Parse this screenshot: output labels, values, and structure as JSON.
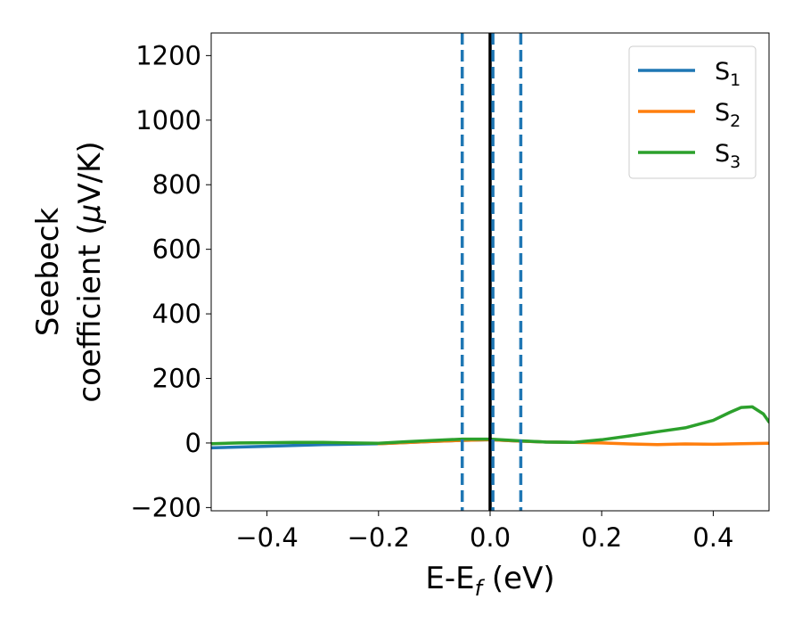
{
  "chart_data": {
    "type": "line",
    "xlabel": {
      "main": "E-E",
      "sub": "f",
      "suffix": " (eV)"
    },
    "ylabel": {
      "line1": "Seebeck",
      "line2_prefix": "coefficient  (",
      "mu": "μ",
      "line2_suffix": "V/K)"
    },
    "xlim": [
      -0.5,
      0.5
    ],
    "ylim": [
      -210,
      1270
    ],
    "xticks": [
      -0.4,
      -0.2,
      0.0,
      0.2,
      0.4
    ],
    "xtick_labels": [
      "−0.4",
      "−0.2",
      "0.0",
      "0.2",
      "0.4"
    ],
    "yticks": [
      -200,
      0,
      200,
      400,
      600,
      800,
      1000,
      1200
    ],
    "ytick_labels": [
      "−200",
      "0",
      "200",
      "400",
      "600",
      "800",
      "1000",
      "1200"
    ],
    "vlines": [
      {
        "x": -0.05,
        "style": "dashed",
        "color": "#1f77b4"
      },
      {
        "x": 0.0,
        "style": "solid",
        "color": "#000000"
      },
      {
        "x": 0.005,
        "style": "dashed",
        "color": "#1f77b4"
      },
      {
        "x": 0.055,
        "style": "dashed",
        "color": "#1f77b4"
      }
    ],
    "legend": {
      "position": "top-right"
    },
    "series": [
      {
        "name": "S",
        "sub": "1",
        "color": "#1f77b4",
        "x": [
          -0.5,
          -0.4,
          -0.3,
          -0.2,
          -0.1,
          -0.05,
          0.0,
          0.05,
          0.1,
          0.15
        ],
        "y": [
          -15,
          -10,
          -5,
          -2,
          5,
          8,
          10,
          6,
          3,
          2
        ]
      },
      {
        "name": "S",
        "sub": "2",
        "color": "#ff7f0e",
        "x": [
          -0.2,
          -0.1,
          -0.05,
          0.0,
          0.05,
          0.1,
          0.15,
          0.2,
          0.25,
          0.3,
          0.35,
          0.4,
          0.45,
          0.5
        ],
        "y": [
          -2,
          5,
          8,
          10,
          6,
          3,
          2,
          0,
          -3,
          -5,
          -3,
          -4,
          -2,
          -1
        ]
      },
      {
        "name": "S",
        "sub": "3",
        "color": "#2ca02c",
        "x": [
          -0.5,
          -0.45,
          -0.4,
          -0.35,
          -0.3,
          -0.25,
          -0.2,
          -0.15,
          -0.1,
          -0.05,
          0.0,
          0.05,
          0.1,
          0.15,
          0.2,
          0.25,
          0.3,
          0.35,
          0.4,
          0.43,
          0.45,
          0.47,
          0.49,
          0.5
        ],
        "y": [
          -2,
          0,
          1,
          2,
          2,
          0,
          -1,
          4,
          8,
          12,
          12,
          7,
          3,
          2,
          10,
          22,
          35,
          47,
          70,
          95,
          110,
          112,
          90,
          65
        ]
      }
    ]
  }
}
